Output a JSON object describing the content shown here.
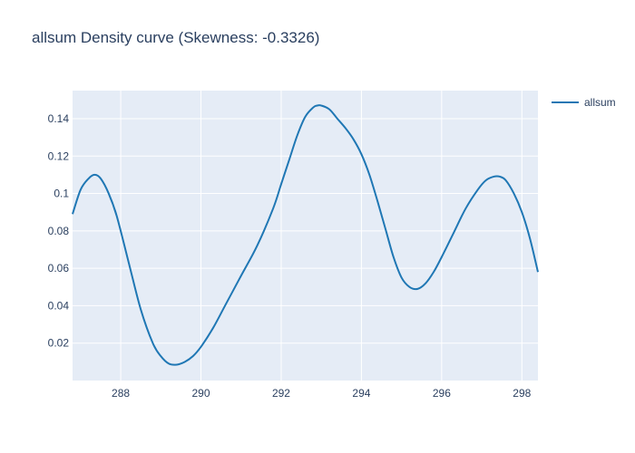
{
  "chart_data": {
    "type": "line",
    "title": "allsum Density curve (Skewness: -0.3326)",
    "xlabel": "",
    "ylabel": "",
    "xlim": [
      286.8,
      298.4
    ],
    "ylim": [
      0,
      0.155
    ],
    "xticks": [
      288,
      290,
      292,
      294,
      296,
      298
    ],
    "yticks": [
      0.02,
      0.04,
      0.06,
      0.08,
      0.1,
      0.12,
      0.14
    ],
    "ytick_labels": [
      "0.02",
      "0.04",
      "0.06",
      "0.08",
      "0.1",
      "0.12",
      "0.14"
    ],
    "xtick_labels": [
      "288",
      "290",
      "292",
      "294",
      "296",
      "298"
    ],
    "grid": true,
    "legend_position": "top-right",
    "series": [
      {
        "name": "allsum",
        "color": "#1f77b4",
        "x": [
          286.8,
          287.0,
          287.2,
          287.35,
          287.5,
          287.7,
          287.9,
          288.2,
          288.5,
          288.8,
          289.0,
          289.2,
          289.4,
          289.6,
          289.8,
          290.0,
          290.3,
          290.6,
          291.0,
          291.4,
          291.8,
          292.0,
          292.2,
          292.4,
          292.6,
          292.8,
          292.9,
          293.0,
          293.2,
          293.4,
          293.6,
          293.8,
          294.0,
          294.2,
          294.4,
          294.6,
          294.8,
          295.0,
          295.2,
          295.4,
          295.6,
          295.8,
          296.0,
          296.3,
          296.6,
          296.9,
          297.1,
          297.3,
          297.45,
          297.6,
          297.8,
          298.0,
          298.2,
          298.4
        ],
        "y": [
          0.089,
          0.102,
          0.108,
          0.11,
          0.108,
          0.1,
          0.088,
          0.063,
          0.038,
          0.02,
          0.013,
          0.009,
          0.0085,
          0.01,
          0.013,
          0.018,
          0.028,
          0.04,
          0.056,
          0.072,
          0.092,
          0.105,
          0.118,
          0.131,
          0.141,
          0.146,
          0.147,
          0.147,
          0.145,
          0.14,
          0.135,
          0.129,
          0.121,
          0.11,
          0.096,
          0.081,
          0.066,
          0.055,
          0.05,
          0.049,
          0.052,
          0.058,
          0.066,
          0.079,
          0.092,
          0.102,
          0.107,
          0.109,
          0.109,
          0.107,
          0.1,
          0.09,
          0.076,
          0.058
        ]
      }
    ]
  }
}
